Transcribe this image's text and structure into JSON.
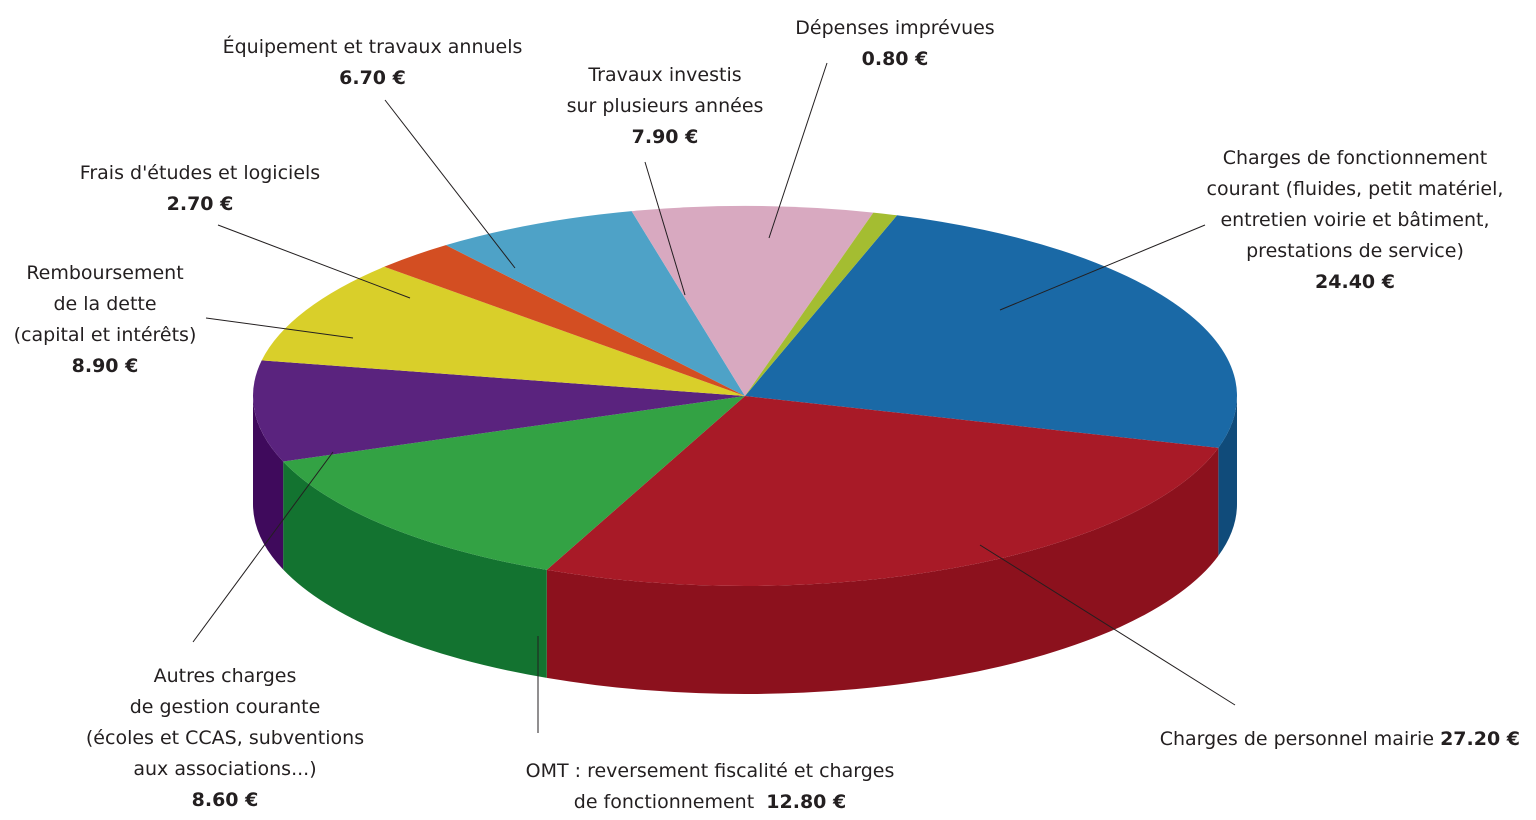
{
  "chart_data": {
    "type": "pie",
    "style": "3d-exploded-none",
    "unit": "€",
    "slices": [
      {
        "key": "charges_fonctionnement",
        "lines": [
          "Charges de fonctionnement",
          "courant (fluides, petit matériel,",
          "entretien voirie et bâtiment,",
          "prestations de service)"
        ],
        "value": 24.4,
        "value_label": "24.40 €",
        "color": "#1a69a6",
        "side_color": "#104b7a"
      },
      {
        "key": "charges_personnel",
        "lines": [
          "Charges de personnel mairie"
        ],
        "value": 27.2,
        "value_label": "27.20 €",
        "color": "#a81a27",
        "side_color": "#8c111d"
      },
      {
        "key": "omt",
        "lines": [
          "OMT : reversement fiscalité et charges",
          "de fonctionnement"
        ],
        "value": 12.8,
        "value_label": "12.80 €",
        "color": "#33a244",
        "side_color": "#137330"
      },
      {
        "key": "autres_charges",
        "lines": [
          "Autres charges",
          "de gestion courante",
          "(écoles et CCAS, subventions",
          "aux associations...)"
        ],
        "value": 8.6,
        "value_label": "8.60 €",
        "color": "#5a237e",
        "side_color": "#3f0a5c"
      },
      {
        "key": "remboursement",
        "lines": [
          "Remboursement",
          "de la dette",
          "(capital et intérêts)"
        ],
        "value": 8.9,
        "value_label": "8.90 €",
        "color": "#d9cf2a",
        "side_color": "#a89f1a"
      },
      {
        "key": "frais_etudes",
        "lines": [
          "Frais d'études et logiciels"
        ],
        "value": 2.7,
        "value_label": "2.70 €",
        "color": "#d34e22",
        "side_color": "#a13a17"
      },
      {
        "key": "equipement",
        "lines": [
          "Équipement et travaux annuels"
        ],
        "value": 6.7,
        "value_label": "6.70 €",
        "color": "#4ea2c7",
        "side_color": "#357d9c"
      },
      {
        "key": "travaux_investis",
        "lines": [
          "Travaux investis",
          "sur plusieurs années"
        ],
        "value": 7.9,
        "value_label": "7.90 €",
        "color": "#d8a9c0",
        "side_color": "#b4859c"
      },
      {
        "key": "depenses_imprevues",
        "lines": [
          "Dépenses imprévues"
        ],
        "value": 0.8,
        "value_label": "0.80 €",
        "color": "#a4bd31",
        "side_color": "#7f9322"
      }
    ]
  }
}
